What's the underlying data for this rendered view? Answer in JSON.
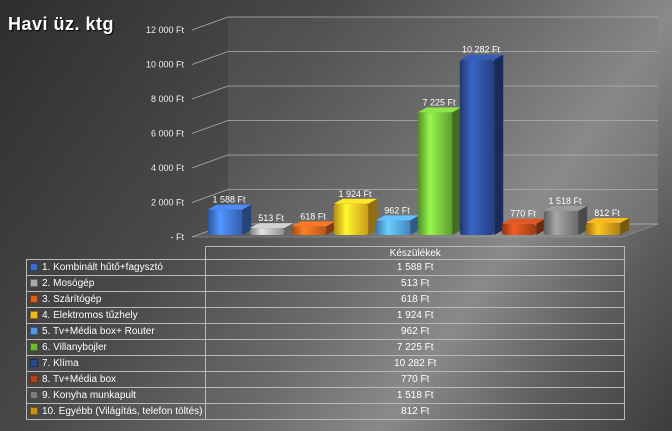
{
  "chart_data": {
    "type": "bar",
    "title": "Havi üz. ktg",
    "series": [
      {
        "name": "Készülékek",
        "values": [
          1588,
          513,
          618,
          1924,
          962,
          7225,
          10282,
          770,
          1518,
          812
        ]
      }
    ],
    "categories": [
      "1. Kombinált hűtő+fagysztó",
      "2. Mosógép",
      "3. Szárítógép",
      "4. Elektromos tűzhely",
      "5. Tv+Média box+ Router",
      "6. Villanybojler",
      "7. Klíma",
      "8. Tv+Média box",
      "9. Konyha munkapult",
      "10. Egyébb (Világítás, telefon töltés)"
    ],
    "data_labels": [
      "1 588 Ft",
      "513 Ft",
      "618 Ft",
      "1 924 Ft",
      "962 Ft",
      "7 225 Ft",
      "10 282 Ft",
      "770 Ft",
      "1 518 Ft",
      "812 Ft"
    ],
    "y_ticks": [
      {
        "value": 0,
        "label": "-   Ft"
      },
      {
        "value": 2000,
        "label": "2 000 Ft"
      },
      {
        "value": 4000,
        "label": "4 000 Ft"
      },
      {
        "value": 6000,
        "label": "6 000 Ft"
      },
      {
        "value": 8000,
        "label": "8 000 Ft"
      },
      {
        "value": 10000,
        "label": "10 000 Ft"
      },
      {
        "value": 12000,
        "label": "12 000 Ft"
      }
    ],
    "ylim": [
      0,
      12000
    ],
    "colors": [
      "#3c6fc8",
      "#a8a8a8",
      "#d9601c",
      "#f0b820",
      "#4f9ae0",
      "#6fb838",
      "#2a4a94",
      "#b5451a",
      "#7c7c7c",
      "#c89418"
    ],
    "grid": true,
    "legend": "data-table"
  }
}
